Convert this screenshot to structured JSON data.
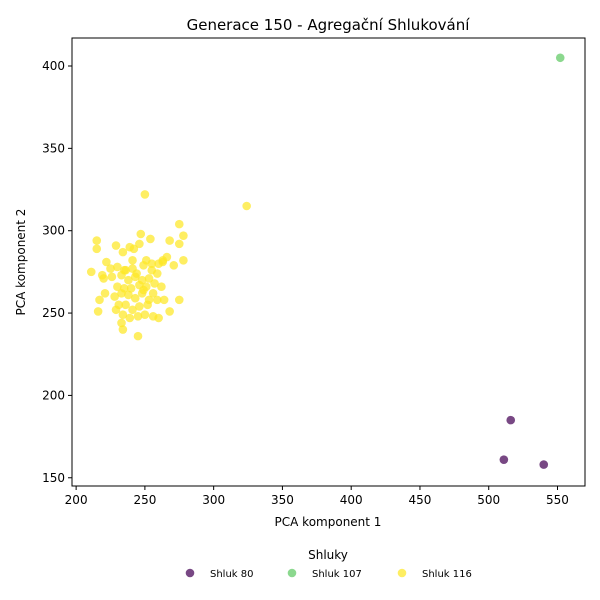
{
  "chart_data": {
    "type": "scatter",
    "title": "Generace 150 - Agregační Shlukování",
    "xlabel": "PCA komponent 1",
    "ylabel": "PCA komponent 2",
    "xlim": [
      197,
      570
    ],
    "ylim": [
      145,
      417
    ],
    "xticks": [
      200,
      250,
      300,
      350,
      400,
      450,
      500,
      550
    ],
    "yticks": [
      150,
      200,
      250,
      300,
      350,
      400
    ],
    "legend": {
      "title": "Shluky",
      "placement": "bottom-center",
      "entries": [
        "Shluk 80",
        "Shluk 107",
        "Shluk 116"
      ]
    },
    "series": [
      {
        "name": "Shluk 80",
        "color": "#440154",
        "points": [
          [
            516,
            185
          ],
          [
            511,
            161
          ],
          [
            540,
            158
          ]
        ]
      },
      {
        "name": "Shluk 107",
        "color": "#5ec962",
        "points": [
          [
            552,
            405
          ]
        ]
      },
      {
        "name": "Shluk 116",
        "color": "#fde725",
        "points": [
          [
            250,
            322
          ],
          [
            324,
            315
          ],
          [
            275,
            304
          ],
          [
            278,
            297
          ],
          [
            247,
            298
          ],
          [
            215,
            294
          ],
          [
            229,
            291
          ],
          [
            239,
            290
          ],
          [
            246,
            292
          ],
          [
            268,
            294
          ],
          [
            275,
            292
          ],
          [
            254,
            295
          ],
          [
            215,
            289
          ],
          [
            234,
            287
          ],
          [
            242,
            289
          ],
          [
            266,
            284
          ],
          [
            278,
            282
          ],
          [
            222,
            281
          ],
          [
            241,
            282
          ],
          [
            251,
            282
          ],
          [
            260,
            280
          ],
          [
            271,
            279
          ],
          [
            211,
            275
          ],
          [
            219,
            273
          ],
          [
            225,
            277
          ],
          [
            230,
            278
          ],
          [
            236,
            276
          ],
          [
            244,
            274
          ],
          [
            249,
            279
          ],
          [
            255,
            276
          ],
          [
            259,
            274
          ],
          [
            263,
            281
          ],
          [
            220,
            271
          ],
          [
            226,
            272
          ],
          [
            233,
            273
          ],
          [
            238,
            270
          ],
          [
            243,
            272
          ],
          [
            248,
            270
          ],
          [
            253,
            271
          ],
          [
            257,
            268
          ],
          [
            230,
            266
          ],
          [
            235,
            265
          ],
          [
            240,
            265
          ],
          [
            246,
            267
          ],
          [
            251,
            266
          ],
          [
            256,
            262
          ],
          [
            262,
            266
          ],
          [
            221,
            262
          ],
          [
            228,
            260
          ],
          [
            233,
            262
          ],
          [
            238,
            261
          ],
          [
            243,
            259
          ],
          [
            248,
            262
          ],
          [
            253,
            258
          ],
          [
            259,
            258
          ],
          [
            264,
            258
          ],
          [
            275,
            258
          ],
          [
            217,
            258
          ],
          [
            231,
            255
          ],
          [
            236,
            255
          ],
          [
            241,
            252
          ],
          [
            246,
            254
          ],
          [
            252,
            255
          ],
          [
            216,
            251
          ],
          [
            229,
            252
          ],
          [
            234,
            249
          ],
          [
            239,
            247
          ],
          [
            245,
            248
          ],
          [
            250,
            249
          ],
          [
            256,
            248
          ],
          [
            260,
            247
          ],
          [
            268,
            251
          ],
          [
            233,
            244
          ],
          [
            234,
            240
          ],
          [
            245,
            236
          ],
          [
            263,
            282
          ],
          [
            235,
            276
          ],
          [
            249,
            264
          ],
          [
            241,
            277
          ],
          [
            255,
            280
          ]
        ]
      }
    ]
  }
}
